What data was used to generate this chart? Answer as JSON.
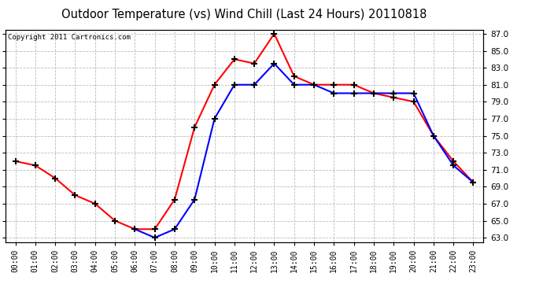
{
  "title": "Outdoor Temperature (vs) Wind Chill (Last 24 Hours) 20110818",
  "copyright": "Copyright 2011 Cartronics.com",
  "x_labels": [
    "00:00",
    "01:00",
    "02:00",
    "03:00",
    "04:00",
    "05:00",
    "06:00",
    "07:00",
    "08:00",
    "09:00",
    "10:00",
    "11:00",
    "12:00",
    "13:00",
    "14:00",
    "15:00",
    "16:00",
    "17:00",
    "18:00",
    "19:00",
    "20:00",
    "21:00",
    "22:00",
    "23:00"
  ],
  "red_x": [
    0,
    1,
    2,
    3,
    4,
    5,
    6,
    7,
    8,
    9,
    10,
    11,
    12,
    13,
    14,
    15,
    16,
    17,
    18,
    19,
    20,
    21,
    22,
    23
  ],
  "red_y": [
    72.0,
    71.5,
    70.0,
    68.0,
    67.0,
    65.0,
    64.0,
    64.0,
    67.5,
    76.0,
    81.0,
    84.0,
    83.5,
    87.0,
    82.0,
    81.0,
    81.0,
    81.0,
    80.0,
    79.5,
    79.0,
    75.0,
    72.0,
    69.5
  ],
  "blue_x": [
    6,
    7,
    8,
    9,
    10,
    11,
    12,
    13,
    14,
    15,
    16,
    17,
    18,
    19,
    20,
    21,
    22,
    23
  ],
  "blue_y": [
    64.0,
    63.0,
    64.0,
    67.5,
    77.0,
    81.0,
    81.0,
    83.5,
    81.0,
    81.0,
    80.0,
    80.0,
    80.0,
    80.0,
    80.0,
    75.0,
    71.5,
    69.5
  ],
  "ylim_min": 62.5,
  "ylim_max": 87.5,
  "yticks": [
    63.0,
    65.0,
    67.0,
    69.0,
    71.0,
    73.0,
    75.0,
    77.0,
    79.0,
    81.0,
    83.0,
    85.0,
    87.0
  ],
  "red_color": "#ff0000",
  "blue_color": "#0000ff",
  "bg_color": "#ffffff",
  "grid_color": "#bbbbbb",
  "title_fontsize": 10.5,
  "copyright_fontsize": 6.5,
  "tick_fontsize": 7.5,
  "xtick_fontsize": 7
}
